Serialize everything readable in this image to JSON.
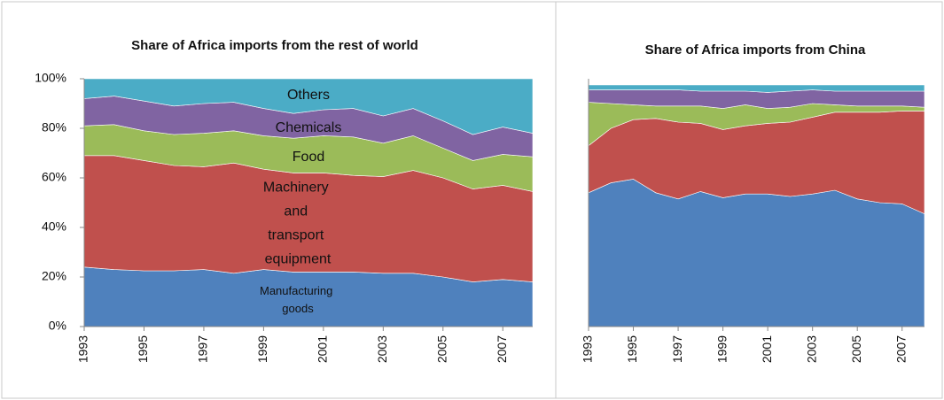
{
  "chart_data": [
    {
      "type": "stacked-area",
      "title": "Share of Africa imports from the rest of world",
      "x": [
        1993,
        1994,
        1995,
        1996,
        1997,
        1998,
        1999,
        2000,
        2001,
        2002,
        2003,
        2004,
        2005,
        2006,
        2007,
        2008
      ],
      "xlim": [
        1993,
        2008
      ],
      "xticks": [
        1993,
        1995,
        1997,
        1999,
        2001,
        2003,
        2005,
        2007
      ],
      "ylim": [
        0,
        100
      ],
      "yticks": [
        {
          "value": 0,
          "label": "0%"
        },
        {
          "value": 20,
          "label": "20%"
        },
        {
          "value": 40,
          "label": "40%"
        },
        {
          "value": 60,
          "label": "60%"
        },
        {
          "value": 80,
          "label": "80%"
        },
        {
          "value": 100,
          "label": "100%"
        }
      ],
      "series": [
        {
          "name": "Manufacturing goods",
          "color": "#4f81bd",
          "values": [
            24,
            23,
            22.5,
            22.5,
            23,
            21.5,
            23,
            22,
            22,
            22,
            21.5,
            21.5,
            20,
            18,
            19,
            18
          ]
        },
        {
          "name": "Machinery and transport equipment",
          "color": "#c0504d",
          "values": [
            45,
            46,
            44.5,
            42.5,
            41.5,
            44.5,
            40.5,
            40,
            40,
            39,
            39,
            41.5,
            40,
            37.5,
            38,
            36.5
          ]
        },
        {
          "name": "Food",
          "color": "#9bbb59",
          "values": [
            12,
            12.5,
            12,
            12.5,
            13.5,
            13,
            13.5,
            14,
            15,
            15.5,
            13.5,
            14,
            12,
            11.5,
            12.5,
            14
          ]
        },
        {
          "name": "Chemicals",
          "color": "#8064a2",
          "values": [
            11,
            11.5,
            12,
            11.5,
            12,
            11.5,
            11,
            10,
            10.5,
            11.5,
            11,
            11,
            11,
            10.5,
            11,
            9.5
          ]
        },
        {
          "name": "Others",
          "color": "#4bacc6",
          "values": [
            8,
            7,
            9,
            11,
            10,
            9.5,
            12,
            14,
            12.5,
            12,
            15,
            12,
            17,
            22.5,
            19.5,
            22
          ]
        }
      ]
    },
    {
      "type": "stacked-area",
      "title": "Share of Africa imports from China",
      "x": [
        1993,
        1994,
        1995,
        1996,
        1997,
        1998,
        1999,
        2000,
        2001,
        2002,
        2003,
        2004,
        2005,
        2006,
        2007,
        2008
      ],
      "xlim": [
        1993,
        2008
      ],
      "xticks": [
        1993,
        1995,
        1997,
        1999,
        2001,
        2003,
        2005,
        2007
      ],
      "ylim": [
        0,
        100
      ],
      "series": [
        {
          "color": "#4f81bd",
          "values": [
            54,
            58,
            59.5,
            54,
            51.5,
            54.5,
            52,
            53.5,
            53.5,
            52.5,
            53.5,
            55,
            51.5,
            50,
            49.5,
            45.5
          ]
        },
        {
          "color": "#c0504d",
          "values": [
            19,
            22,
            24,
            30,
            31,
            27.5,
            27.5,
            27.5,
            28.5,
            30,
            31,
            31.5,
            35,
            36.5,
            37.5,
            41.5
          ]
        },
        {
          "color": "#9bbb59",
          "values": [
            17.5,
            10,
            6,
            5,
            6.5,
            7,
            8.5,
            8.5,
            6,
            6,
            5.5,
            3,
            2.5,
            2.5,
            2,
            1.5
          ]
        },
        {
          "color": "#8064a2",
          "values": [
            5,
            5.5,
            6,
            6.5,
            6.5,
            6,
            7,
            5.5,
            6.5,
            6.5,
            5.5,
            5.5,
            6,
            6,
            6,
            6.5
          ]
        },
        {
          "color": "#4bacc6",
          "values": [
            2,
            2,
            2,
            2,
            2,
            2.5,
            2.5,
            2.5,
            3,
            2.5,
            2,
            2.5,
            2.5,
            2.5,
            2.5,
            2.5
          ]
        }
      ]
    }
  ]
}
